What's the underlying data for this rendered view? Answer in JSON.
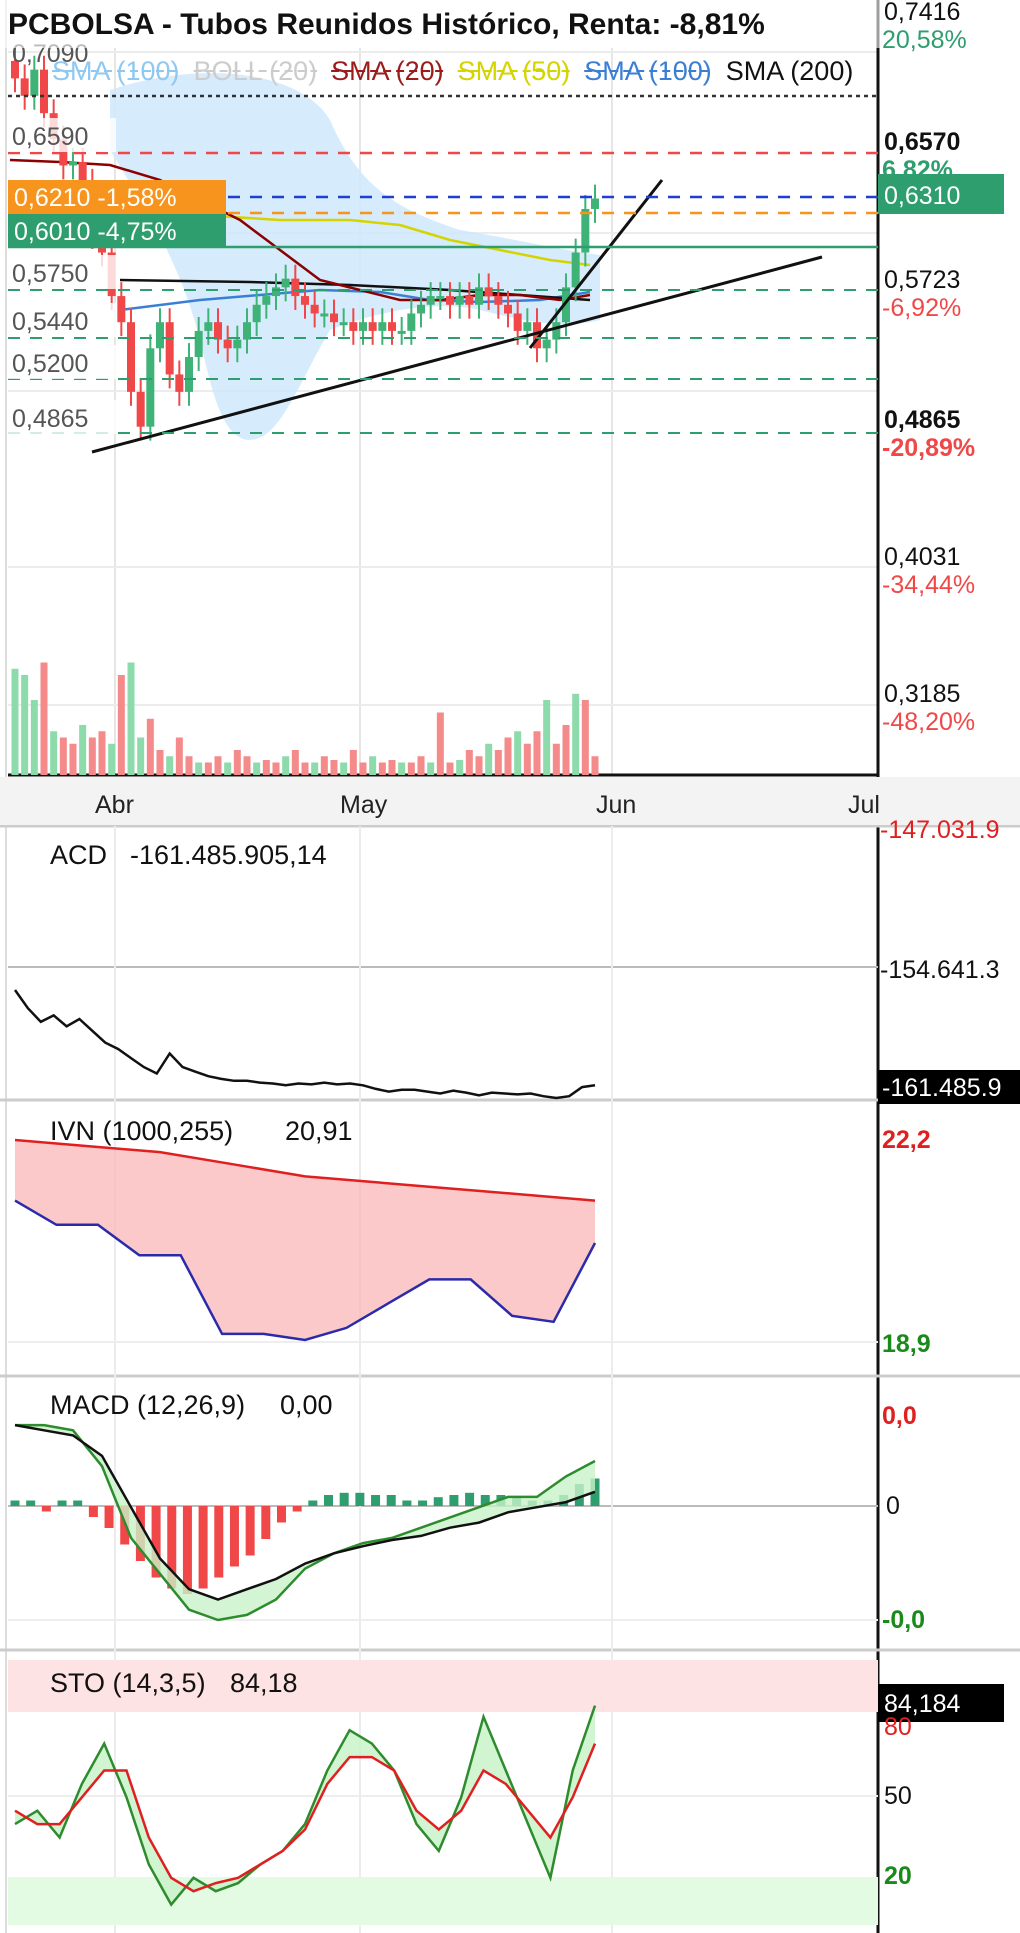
{
  "title": "PCBOLSA - Tubos Reunidos Histórico, Renta: -8,81%",
  "colors": {
    "up": "#3fb377",
    "down": "#f04848",
    "sma20": "#8b0000",
    "sma50": "#d4d400",
    "sma100": "#3a7fd4",
    "sma200": "#111111",
    "boll": "#cde8fb",
    "green": "#2f9e6e"
  },
  "legend": [
    {
      "label": "SMA (100)",
      "color": "#8fc8f0",
      "struck": true
    },
    {
      "label": "BOLL (20)",
      "color": "#cccccc",
      "struck": true
    },
    {
      "label": "SMA (20)",
      "color": "#9b1c1c",
      "struck": true
    },
    {
      "label": "SMA (50)",
      "color": "#d4d400",
      "struck": true
    },
    {
      "label": "SMA (100)",
      "color": "#3a7fd4",
      "struck": true
    },
    {
      "label": "SMA (200)",
      "color": "#111111",
      "struck": false
    }
  ],
  "price_left_labels": [
    "0,7090",
    "0,6590",
    "0,5750",
    "0,5440",
    "0,5200",
    "0,4865"
  ],
  "price_tags": [
    {
      "text": "0,6210  -1,58%",
      "bg": "#f7941d"
    },
    {
      "text": "0,6010  -4,75%",
      "bg": "#2f9e6e"
    }
  ],
  "right_axis": [
    {
      "value": "0,7416",
      "pct": "20,58%",
      "pct_color": "#2f9e6e",
      "bold": false
    },
    {
      "value": "0,6570",
      "pct": "6,82%",
      "pct_color": "#2f9e6e",
      "bold": true
    },
    {
      "value": "0,6310",
      "pct": "",
      "pct_color": "",
      "bold": false,
      "boxed": true
    },
    {
      "value": "0,5723",
      "pct": "-6,92%",
      "pct_color": "#f04848",
      "bold": false
    },
    {
      "value": "0,4865",
      "pct": "-20,89%",
      "pct_color": "#f04848",
      "bold": true
    },
    {
      "value": "0,4031",
      "pct": "-34,44%",
      "pct_color": "#f04848",
      "bold": false
    },
    {
      "value": "0,3185",
      "pct": "-48,20%",
      "pct_color": "#f04848",
      "bold": false
    }
  ],
  "months": [
    "Abr",
    "May",
    "Jun",
    "Jul"
  ],
  "chart_data": [
    {
      "type": "candlestick",
      "ylim": [
        0.3,
        0.745
      ],
      "closes": [
        0.7,
        0.69,
        0.705,
        0.68,
        0.665,
        0.65,
        0.652,
        0.64,
        0.61,
        0.6,
        0.575,
        0.56,
        0.52,
        0.5,
        0.545,
        0.56,
        0.53,
        0.52,
        0.54,
        0.555,
        0.56,
        0.55,
        0.545,
        0.55,
        0.56,
        0.57,
        0.575,
        0.58,
        0.585,
        0.575,
        0.57,
        0.565,
        0.565,
        0.56,
        0.56,
        0.555,
        0.56,
        0.555,
        0.56,
        0.555,
        0.555,
        0.565,
        0.57,
        0.575,
        0.575,
        0.57,
        0.575,
        0.57,
        0.58,
        0.575,
        0.57,
        0.565,
        0.555,
        0.56,
        0.545,
        0.55,
        0.56,
        0.58,
        0.6,
        0.625,
        0.631
      ],
      "horizontal_levels": [
        0.7416,
        0.657,
        0.631,
        0.621,
        0.601,
        0.575,
        0.544,
        0.52,
        0.4865
      ],
      "volume": [
        0.85,
        0.8,
        0.6,
        0.9,
        0.35,
        0.3,
        0.25,
        0.4,
        0.3,
        0.35,
        0.25,
        0.8,
        0.9,
        0.3,
        0.45,
        0.2,
        0.15,
        0.3,
        0.15,
        0.1,
        0.1,
        0.15,
        0.1,
        0.2,
        0.15,
        0.1,
        0.12,
        0.1,
        0.15,
        0.2,
        0.1,
        0.1,
        0.15,
        0.12,
        0.1,
        0.2,
        0.1,
        0.15,
        0.1,
        0.12,
        0.1,
        0.1,
        0.15,
        0.1,
        0.5,
        0.1,
        0.12,
        0.2,
        0.15,
        0.25,
        0.2,
        0.3,
        0.35,
        0.25,
        0.35,
        0.6,
        0.25,
        0.4,
        0.65,
        0.6,
        0.15
      ]
    },
    {
      "type": "line",
      "name": "ACD",
      "label": "ACD",
      "value": "-161.485.905,14",
      "axis": [
        "-147.031.9",
        "-154.641.3",
        "-161.485.9"
      ],
      "values": [
        -151.0,
        -153.0,
        -154.5,
        -153.8,
        -155.0,
        -154.2,
        -155.5,
        -156.8,
        -157.5,
        -158.5,
        -159.5,
        -160.2,
        -158.0,
        -159.5,
        -160.0,
        -160.5,
        -160.8,
        -161.0,
        -161.0,
        -161.2,
        -161.3,
        -161.5,
        -161.3,
        -161.4,
        -161.2,
        -161.4,
        -161.3,
        -161.5,
        -161.9,
        -162.2,
        -162.0,
        -162.0,
        -162.2,
        -162.4,
        -162.1,
        -162.3,
        -162.6,
        -162.3,
        -162.4,
        -162.5,
        -162.4,
        -162.7,
        -162.9,
        -162.7,
        -161.7,
        -161.5
      ]
    },
    {
      "type": "line",
      "name": "IVN",
      "label": "IVN (1000,255)",
      "value": "20,91",
      "axis": [
        "22,2",
        "18,9"
      ],
      "upper": [
        22.2,
        22.1,
        22.0,
        21.8,
        21.6,
        21.5,
        21.4,
        21.3,
        21.2
      ],
      "lower": [
        21.2,
        20.8,
        20.8,
        20.3,
        20.3,
        19.0,
        19.0,
        18.9,
        19.1,
        19.5,
        19.9,
        19.9,
        19.3,
        19.2,
        20.5
      ]
    },
    {
      "type": "bar+line",
      "name": "MACD",
      "label": "MACD (12,26,9)",
      "value": "0,00",
      "axis": [
        "0,0",
        "0",
        "-0,0"
      ],
      "histogram": [
        0.05,
        0.05,
        -0.05,
        0.05,
        0.05,
        -0.1,
        -0.2,
        -0.35,
        -0.5,
        -0.65,
        -0.75,
        -0.8,
        -0.75,
        -0.65,
        -0.55,
        -0.45,
        -0.3,
        -0.15,
        -0.05,
        0.05,
        0.1,
        0.12,
        0.12,
        0.1,
        0.1,
        0.05,
        0.05,
        0.08,
        0.1,
        0.12,
        0.1,
        0.1,
        0.08,
        0.05,
        0.05,
        0.1,
        0.2,
        0.25
      ],
      "macd": [
        0.9,
        0.9,
        0.85,
        0.5,
        -0.2,
        -0.55,
        -0.9,
        -1.0,
        -0.95,
        -0.8,
        -0.5,
        -0.35,
        -0.25,
        -0.2,
        -0.1,
        0.0,
        0.1,
        0.2,
        0.2,
        0.4,
        0.55
      ],
      "signal": [
        0.9,
        0.85,
        0.8,
        0.6,
        0.1,
        -0.4,
        -0.7,
        -0.8,
        -0.7,
        -0.6,
        -0.45,
        -0.35,
        -0.28,
        -0.22,
        -0.18,
        -0.1,
        -0.05,
        0.05,
        0.1,
        0.15,
        0.25
      ]
    },
    {
      "type": "line",
      "name": "STO",
      "label": "STO (14,3,5)",
      "value": "84,18",
      "axis": [
        "84,184",
        "80",
        "50",
        "20"
      ],
      "k": [
        40,
        45,
        35,
        55,
        70,
        50,
        25,
        10,
        20,
        15,
        18,
        25,
        30,
        40,
        60,
        75,
        70,
        60,
        40,
        30,
        50,
        80,
        60,
        40,
        20,
        60,
        84.18
      ],
      "d": [
        45,
        40,
        40,
        50,
        60,
        60,
        35,
        20,
        15,
        18,
        20,
        25,
        30,
        38,
        55,
        65,
        65,
        60,
        45,
        38,
        45,
        60,
        55,
        45,
        35,
        50,
        70
      ]
    }
  ]
}
